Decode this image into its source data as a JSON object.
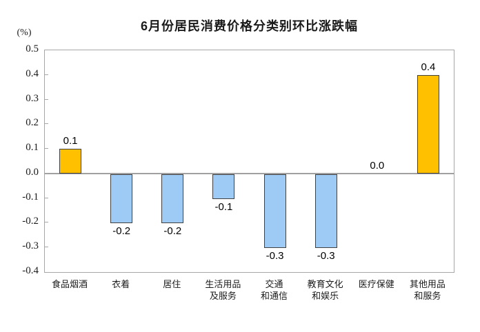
{
  "chart_data": {
    "type": "bar",
    "title": "6月份居民消费价格分类别环比涨跌幅",
    "ylabel": "(%)",
    "xlabel": "",
    "ylim": [
      -0.4,
      0.5
    ],
    "ytick_step": 0.1,
    "yticks": [
      "0.5",
      "0.4",
      "0.3",
      "0.2",
      "0.1",
      "0.0",
      "-0.1",
      "-0.2",
      "-0.3",
      "-0.4"
    ],
    "categories": [
      "食品烟酒",
      "衣着",
      "居住",
      "生活用品\n及服务",
      "交通\n和通信",
      "教育文化\n和娱乐",
      "医疗保健",
      "其他用品\n和服务"
    ],
    "values": [
      0.1,
      -0.2,
      -0.2,
      -0.1,
      -0.3,
      -0.3,
      0.0,
      0.4
    ],
    "value_labels": [
      "0.1",
      "-0.2",
      "-0.2",
      "-0.1",
      "-0.3",
      "-0.3",
      "0.0",
      "0.4"
    ],
    "grid": "off",
    "legend": "none",
    "colors": {
      "positive_bar": "#FFC000",
      "negative_bar": "#9ECBF5",
      "bar_border": "#404040",
      "axis": "#A6A6A6",
      "zero_line": "#A0A0A0",
      "text": "#000000",
      "background": "#FFFFFF"
    }
  }
}
